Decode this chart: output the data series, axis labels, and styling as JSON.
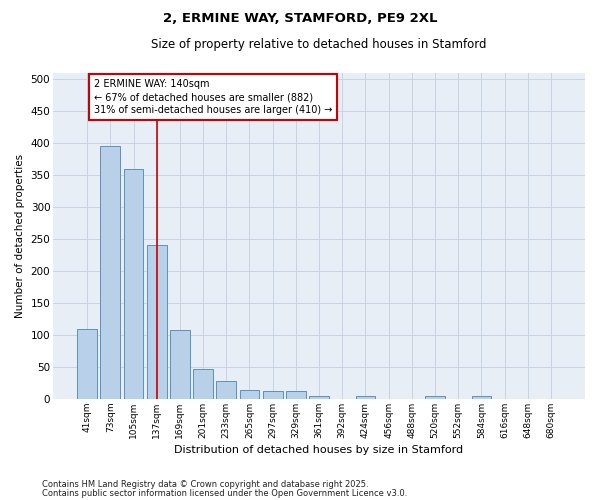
{
  "title1": "2, ERMINE WAY, STAMFORD, PE9 2XL",
  "title2": "Size of property relative to detached houses in Stamford",
  "xlabel": "Distribution of detached houses by size in Stamford",
  "ylabel": "Number of detached properties",
  "categories": [
    "41sqm",
    "73sqm",
    "105sqm",
    "137sqm",
    "169sqm",
    "201sqm",
    "233sqm",
    "265sqm",
    "297sqm",
    "329sqm",
    "361sqm",
    "392sqm",
    "424sqm",
    "456sqm",
    "488sqm",
    "520sqm",
    "552sqm",
    "584sqm",
    "616sqm",
    "648sqm",
    "680sqm"
  ],
  "values": [
    110,
    395,
    360,
    240,
    107,
    47,
    28,
    14,
    13,
    13,
    4,
    0,
    4,
    0,
    0,
    4,
    0,
    4,
    0,
    0,
    0
  ],
  "bar_color": "#b8d0e8",
  "bar_edge_color": "#5a90c0",
  "grid_color": "#c8d4e4",
  "background_color": "#e8eef6",
  "vline_color": "#cc0000",
  "vline_x": 3.0,
  "annotation_text": "2 ERMINE WAY: 140sqm\n← 67% of detached houses are smaller (882)\n31% of semi-detached houses are larger (410) →",
  "annotation_box_color": "#cc0000",
  "footnote1": "Contains HM Land Registry data © Crown copyright and database right 2025.",
  "footnote2": "Contains public sector information licensed under the Open Government Licence v3.0.",
  "ylim": [
    0,
    510
  ],
  "yticks": [
    0,
    50,
    100,
    150,
    200,
    250,
    300,
    350,
    400,
    450,
    500
  ]
}
